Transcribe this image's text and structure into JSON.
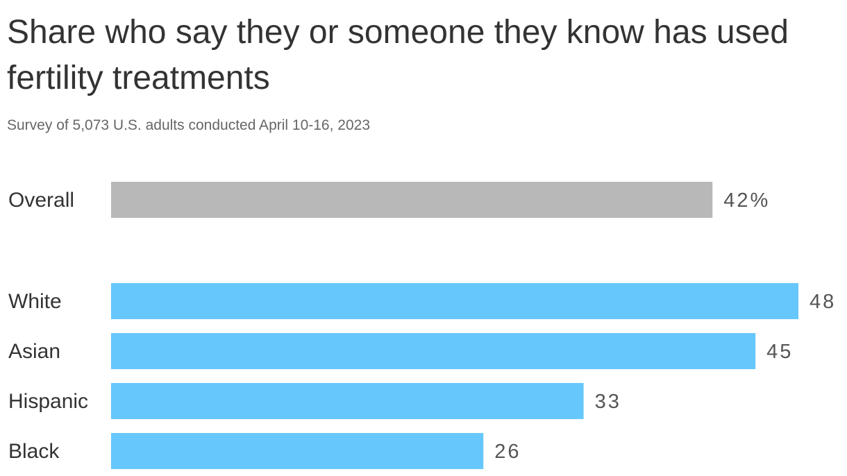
{
  "chart_data": {
    "type": "bar",
    "orientation": "horizontal",
    "title": "Share who say they or someone they know has used fertility treatments",
    "subtitle": "Survey of 5,073 U.S. adults conducted April 10-16, 2023",
    "categories": [
      "Overall",
      "White",
      "Asian",
      "Hispanic",
      "Black"
    ],
    "values": [
      42,
      48,
      45,
      33,
      26
    ],
    "value_labels": [
      "42%",
      "48",
      "45",
      "33",
      "26"
    ],
    "unit": "%",
    "xlim": [
      0,
      48
    ],
    "grid": false,
    "legend": "none",
    "colors": {
      "Overall": "#b8b8b8",
      "White": "#66c7fc",
      "Asian": "#66c7fc",
      "Hispanic": "#66c7fc",
      "Black": "#66c7fc"
    }
  }
}
